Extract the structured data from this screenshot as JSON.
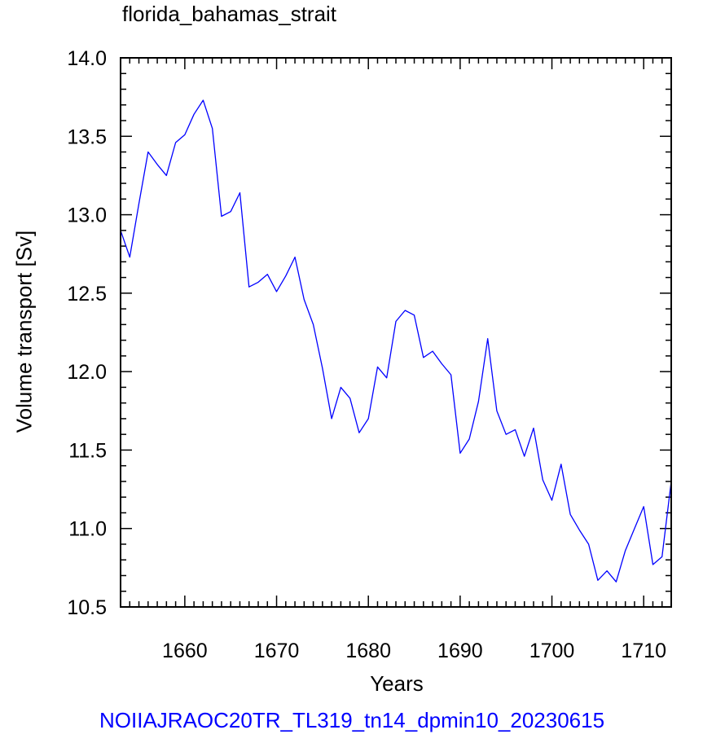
{
  "chart_data": {
    "type": "line",
    "title": "florida_bahamas_strait",
    "footer": "NOIIAJRAOC20TR_TL319_tn14_dpmin10_20230615",
    "footer_color": "#0000ff",
    "xlabel": "Years",
    "ylabel": "Volume transport [Sv]",
    "xlim": [
      1653,
      1713
    ],
    "ylim": [
      10.5,
      14.0
    ],
    "xticks": [
      "1660",
      "1670",
      "1680",
      "1690",
      "1700",
      "1710"
    ],
    "yticks": [
      "10.5",
      "11.0",
      "11.5",
      "12.0",
      "12.5",
      "13.0",
      "13.5",
      "14.0"
    ],
    "grid": false,
    "series": [
      {
        "color": "#0000ff",
        "x": [
          1653,
          1654,
          1655,
          1656,
          1657,
          1658,
          1659,
          1660,
          1661,
          1662,
          1663,
          1664,
          1665,
          1666,
          1667,
          1668,
          1669,
          1670,
          1671,
          1672,
          1673,
          1674,
          1675,
          1676,
          1677,
          1678,
          1679,
          1680,
          1681,
          1682,
          1683,
          1684,
          1685,
          1686,
          1687,
          1688,
          1689,
          1690,
          1691,
          1692,
          1693,
          1694,
          1695,
          1696,
          1697,
          1698,
          1699,
          1700,
          1701,
          1702,
          1703,
          1704,
          1705,
          1706,
          1707,
          1708,
          1709,
          1710,
          1711,
          1712,
          1713
        ],
        "y": [
          12.9,
          12.73,
          13.07,
          13.4,
          13.32,
          13.25,
          13.46,
          13.51,
          13.64,
          13.73,
          13.55,
          12.99,
          13.02,
          13.14,
          12.54,
          12.57,
          12.62,
          12.51,
          12.61,
          12.73,
          12.46,
          12.3,
          12.02,
          11.7,
          11.9,
          11.83,
          11.61,
          11.7,
          12.03,
          11.96,
          12.32,
          12.39,
          12.36,
          12.09,
          12.13,
          12.05,
          11.98,
          11.48,
          11.57,
          11.81,
          12.21,
          11.75,
          11.6,
          11.63,
          11.46,
          11.64,
          11.31,
          11.18,
          11.41,
          11.09,
          10.99,
          10.9,
          10.67,
          10.73,
          10.66,
          10.86,
          11.0,
          11.14,
          10.77,
          10.82,
          11.3
        ]
      }
    ]
  }
}
